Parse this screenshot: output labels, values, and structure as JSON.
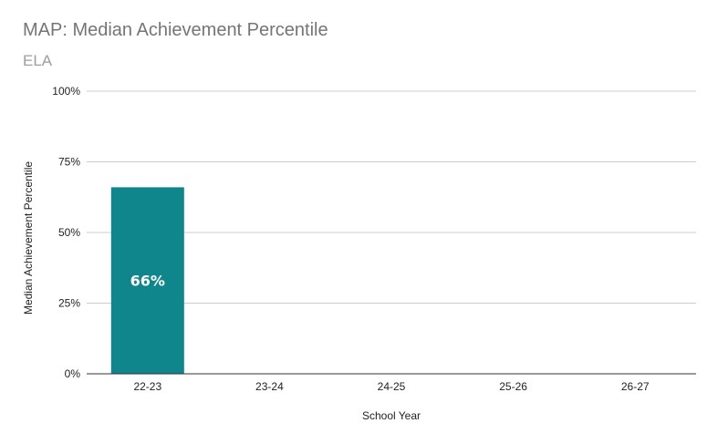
{
  "chart_data": {
    "type": "bar",
    "title": "MAP: Median Achievement Percentile",
    "subtitle": "ELA",
    "xlabel": "School Year",
    "ylabel": "Median Achievement Percentile",
    "categories": [
      "22-23",
      "23-24",
      "24-25",
      "25-26",
      "26-27"
    ],
    "values": [
      66,
      null,
      null,
      null,
      null
    ],
    "data_labels": [
      "66%",
      "",
      "",
      "",
      ""
    ],
    "ylim": [
      0,
      100
    ],
    "yticks": [
      0,
      25,
      50,
      75,
      100
    ],
    "ytick_labels": [
      "0%",
      "25%",
      "50%",
      "75%",
      "100%"
    ],
    "grid": true,
    "legend": "none",
    "colors": {
      "bar": "#0f868c",
      "grid": "#cccccc",
      "axis": "#333333",
      "title": "#757575",
      "subtitle": "#9e9e9e"
    }
  }
}
